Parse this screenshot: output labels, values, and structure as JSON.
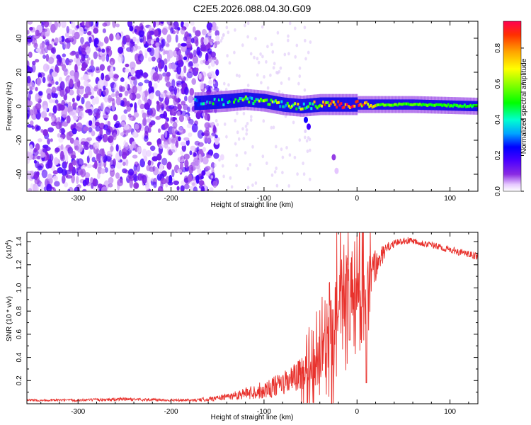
{
  "title": "C2E5.2026.088.04.30.G09",
  "colors": {
    "axis": "#000000",
    "snr_line": "#e8312c",
    "spectrogram_scatter": "#7d24e6",
    "colormap": [
      "#ffffff",
      "#e6c8ff",
      "#8a2be2",
      "#4b00ff",
      "#0000ff",
      "#00a5ff",
      "#00ffd0",
      "#00ff00",
      "#7fff00",
      "#ffff00",
      "#ffa500",
      "#ff3000",
      "#ff0050"
    ]
  },
  "chart_data": [
    {
      "id": "spectrogram",
      "type": "heatmap",
      "title": "C2E5.2026.088.04.30.G09",
      "xlabel": "Height of straight line (km)",
      "ylabel": "Frequency (Hz)",
      "xlim": [
        -355,
        130
      ],
      "ylim": [
        -50,
        50
      ],
      "xticks": [
        -300,
        -200,
        -100,
        0,
        100
      ],
      "xtick_labels": [
        "-300",
        "-200",
        "-100",
        "0",
        "100"
      ],
      "yticks": [
        -40,
        -20,
        0,
        20,
        40
      ],
      "ytick_labels": [
        "-40",
        "-20",
        "0",
        "20",
        "40"
      ],
      "colorbar": {
        "label": "Normalized spectral amplitude",
        "range": [
          0,
          0.95
        ],
        "ticks": [
          0,
          0.2,
          0.4,
          0.6,
          0.8
        ],
        "tick_labels": [
          "0.0",
          "0.2",
          "0.4",
          "0.6",
          "0.8"
        ]
      },
      "features": {
        "noise_region_x": [
          -355,
          -160
        ],
        "noise_amplitude_range": [
          0.05,
          0.25
        ],
        "band_center_hz": [
          [
            -170,
            2
          ],
          [
            -140,
            3
          ],
          [
            -120,
            4
          ],
          [
            -100,
            3
          ],
          [
            -80,
            1
          ],
          [
            -60,
            0
          ],
          [
            -40,
            1
          ],
          [
            -20,
            1
          ],
          [
            0,
            1
          ],
          [
            20,
            1
          ],
          [
            60,
            1
          ],
          [
            130,
            0
          ]
        ],
        "band_halfwidth_hz": 3,
        "band_core_amplitude": [
          [
            -170,
            0.35
          ],
          [
            -120,
            0.5
          ],
          [
            -80,
            0.55
          ],
          [
            -40,
            0.65
          ],
          [
            -20,
            0.9
          ],
          [
            0,
            0.85
          ],
          [
            20,
            0.6
          ],
          [
            130,
            0.55
          ]
        ],
        "trailing_blobs": [
          [
            -55,
            -8,
            0.3
          ],
          [
            -52,
            -12,
            0.25
          ],
          [
            -25,
            -30,
            0.15
          ],
          [
            -22,
            -38,
            0.08
          ],
          [
            -155,
            25,
            0.05
          ],
          [
            -150,
            40,
            0.05
          ],
          [
            -145,
            -30,
            0.05
          ]
        ]
      }
    },
    {
      "id": "snr",
      "type": "line",
      "xlabel": "Height of straight line (km)",
      "ylabel": "SNR (10 * v/v)",
      "y_multiplier": "(x10",
      "y_multiplier_exp": "4",
      "xlim": [
        -355,
        130
      ],
      "ylim": [
        0,
        1.48
      ],
      "xticks": [
        -300,
        -200,
        -100,
        0,
        100
      ],
      "xtick_labels": [
        "-300",
        "-200",
        "-100",
        "0",
        "100"
      ],
      "yticks": [
        0.2,
        0.4,
        0.6,
        0.8,
        1.0,
        1.2,
        1.4
      ],
      "ytick_labels": [
        "0.2",
        "0.4",
        "0.6",
        "0.8",
        "1.0",
        "1.2",
        "1.4"
      ],
      "series": [
        {
          "name": "SNR",
          "x": [
            -355,
            -300,
            -250,
            -200,
            -175,
            -160,
            -140,
            -120,
            -100,
            -80,
            -60,
            -50,
            -40,
            -30,
            -25,
            -20,
            -15,
            -10,
            -5,
            0,
            5,
            10,
            15,
            20,
            25,
            30,
            35,
            40,
            50,
            60,
            70,
            80,
            90,
            100,
            110,
            120,
            130
          ],
          "y": [
            0.03,
            0.03,
            0.04,
            0.03,
            0.03,
            0.04,
            0.06,
            0.09,
            0.12,
            0.17,
            0.25,
            0.3,
            0.38,
            0.55,
            0.7,
            0.82,
            0.95,
            1.0,
            1.02,
            1.05,
            1.12,
            1.0,
            1.12,
            1.18,
            1.25,
            1.32,
            1.36,
            1.38,
            1.41,
            1.41,
            1.39,
            1.37,
            1.35,
            1.33,
            1.31,
            1.29,
            1.27
          ],
          "noise_envelope": [
            0.01,
            0.01,
            0.015,
            0.01,
            0.01,
            0.02,
            0.03,
            0.05,
            0.08,
            0.1,
            0.15,
            0.18,
            0.22,
            0.3,
            0.35,
            0.35,
            0.35,
            0.3,
            0.3,
            0.28,
            0.3,
            0.25,
            0.2,
            0.15,
            0.1,
            0.06,
            0.04,
            0.03,
            0.03,
            0.03,
            0.03,
            0.03,
            0.03,
            0.03,
            0.03,
            0.03,
            0.03
          ],
          "dips": [
            [
              10,
              0.18
            ],
            [
              -8,
              0.55
            ],
            [
              -20,
              0.75
            ]
          ]
        }
      ]
    }
  ]
}
